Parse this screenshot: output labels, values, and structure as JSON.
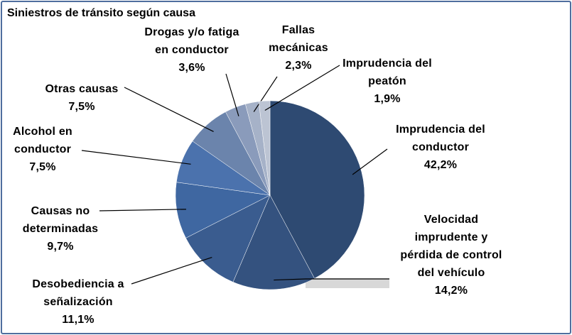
{
  "chart_data": {
    "type": "pie",
    "title": "Siniestros de tránsito según causa",
    "categories": [
      "Imprudencia del conductor",
      "Velocidad imprudente y pérdida de control del vehículo",
      "Desobediencia a señalización",
      "Causas no determinadas",
      "Alcohol en conductor",
      "Otras causas",
      "Drogas y/o fatiga en conductor",
      "Fallas mecánicas",
      "Imprudencia del peatón"
    ],
    "values": [
      42.2,
      14.2,
      11.1,
      9.7,
      7.5,
      7.5,
      3.6,
      2.3,
      1.9
    ],
    "value_labels": [
      "42,2%",
      "14,2%",
      "11,1%",
      "9,7%",
      "7,5%",
      "7,5%",
      "3,6%",
      "2,3%",
      "1,9%"
    ],
    "colors": [
      "#2e4a72",
      "#34527f",
      "#3a5c8f",
      "#3f67a1",
      "#4b72ad",
      "#6b84ac",
      "#8a9bbb",
      "#a6b2c8",
      "#bcc4d3"
    ]
  }
}
